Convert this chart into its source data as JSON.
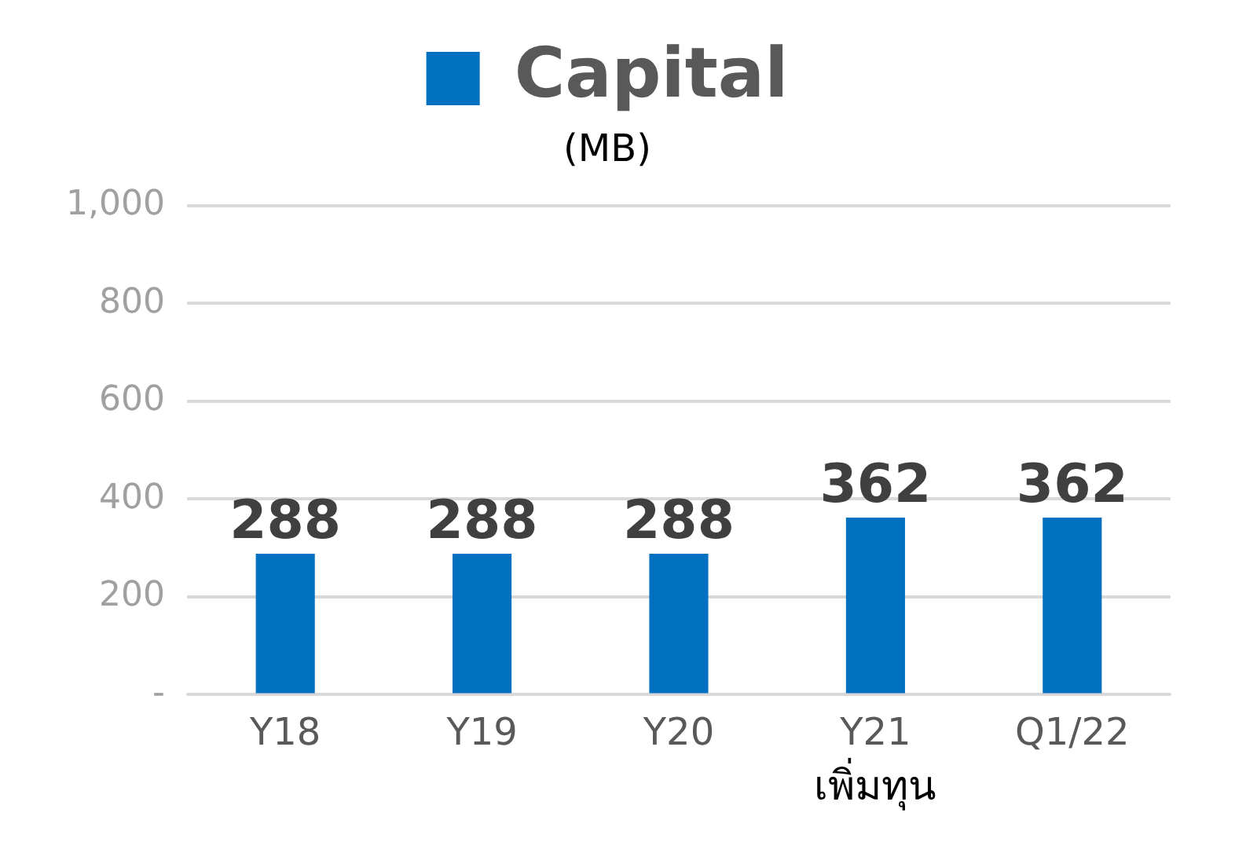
{
  "chart_data": {
    "type": "bar",
    "subtitle": "(MB)",
    "categories": [
      "Y18",
      "Y19",
      "Y20",
      "Y21",
      "Q1/22"
    ],
    "series": [
      {
        "name": "Capital",
        "color": "#0070c0",
        "values": [
          288,
          288,
          288,
          362,
          362
        ]
      }
    ],
    "ylim": [
      0,
      1000
    ],
    "yticks": [
      {
        "value": 0,
        "label": "-"
      },
      200,
      400,
      600,
      800,
      {
        "value": 1000,
        "label": "1,000"
      }
    ],
    "grid": "y",
    "legend": "top",
    "data_labels": true,
    "annotations": [
      "เพิ่มทุน"
    ]
  }
}
